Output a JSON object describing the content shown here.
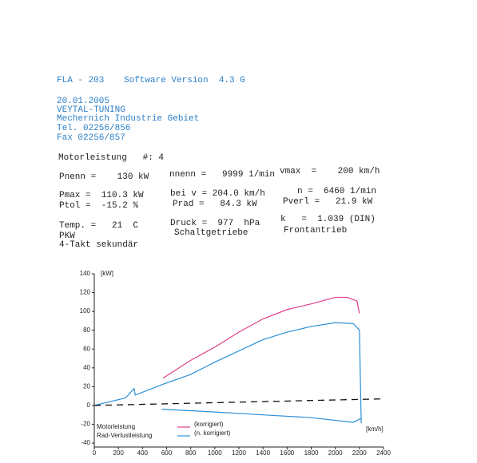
{
  "header": {
    "lines": [
      "FLA - 203",
      "Software Version  4.3 G",
      "20.01.2005",
      "VEYTAL-TUNING",
      "Mechernich Industrie Gebiet",
      "Tel. 02256/856",
      "Fax 02256/857"
    ]
  },
  "fields": [
    "Motorleistung   #: 4",
    "Pnenn =    130 kW",
    "nnenn =   9999 1/min",
    "vmax  =    200 km/h",
    "Pmax =  110.3 kW",
    "Ptol =  -15.2 %",
    "bei v = 204.0 km/h",
    "Prad =   84.3 kW",
    "n =  6460 1/min",
    "Pverl =   21.9 kW",
    "Temp. =   21  C",
    "PKW",
    "4-Takt sekundär",
    "Druck =  977  hPa",
    "Schaltgetriebe",
    "k   =  1.039 (DIN)",
    "Frontantrieb"
  ],
  "chart_data": {
    "type": "line",
    "y_label": "[kW]",
    "x_label": "[km/h]",
    "xlim": [
      0,
      2400
    ],
    "xticks": [
      0,
      200,
      400,
      600,
      800,
      1000,
      1200,
      1400,
      1600,
      1800,
      2000,
      2200,
      2400
    ],
    "ylim": [
      -40,
      140
    ],
    "yticks": [
      -40,
      -20,
      0,
      20,
      40,
      60,
      80,
      100,
      120,
      140
    ],
    "legend_notes": [
      "(korrigiert)",
      "(n. korrigiert)"
    ],
    "series": [
      {
        "name": "Motorleistung",
        "color": "#e0408a",
        "x": [
          570,
          800,
          1000,
          1200,
          1400,
          1600,
          1800,
          2000,
          2100,
          2180,
          2200
        ],
        "values": [
          29,
          48,
          62,
          78,
          92,
          102,
          108,
          115,
          115,
          111,
          98
        ]
      },
      {
        "color": "#2a8fd8",
        "x": [
          0,
          130,
          260,
          330,
          340,
          560,
          800,
          1000,
          1200,
          1400,
          1600,
          1800,
          2000,
          2150,
          2200,
          2215
        ],
        "values": [
          0,
          4,
          8,
          18,
          11,
          22,
          33,
          46,
          58,
          70,
          78,
          84,
          88,
          87,
          80,
          -19
        ]
      },
      {
        "name": "Rad-Verlustleistung",
        "color": "#2a8fd8",
        "x": [
          560,
          1000,
          1400,
          1800,
          2150,
          2210
        ],
        "values": [
          -4,
          -7,
          -10,
          -13,
          -18,
          -14
        ]
      },
      {
        "color": "#111111",
        "dashed": true,
        "x": [
          0,
          2400
        ],
        "values": [
          0,
          7
        ]
      }
    ]
  }
}
